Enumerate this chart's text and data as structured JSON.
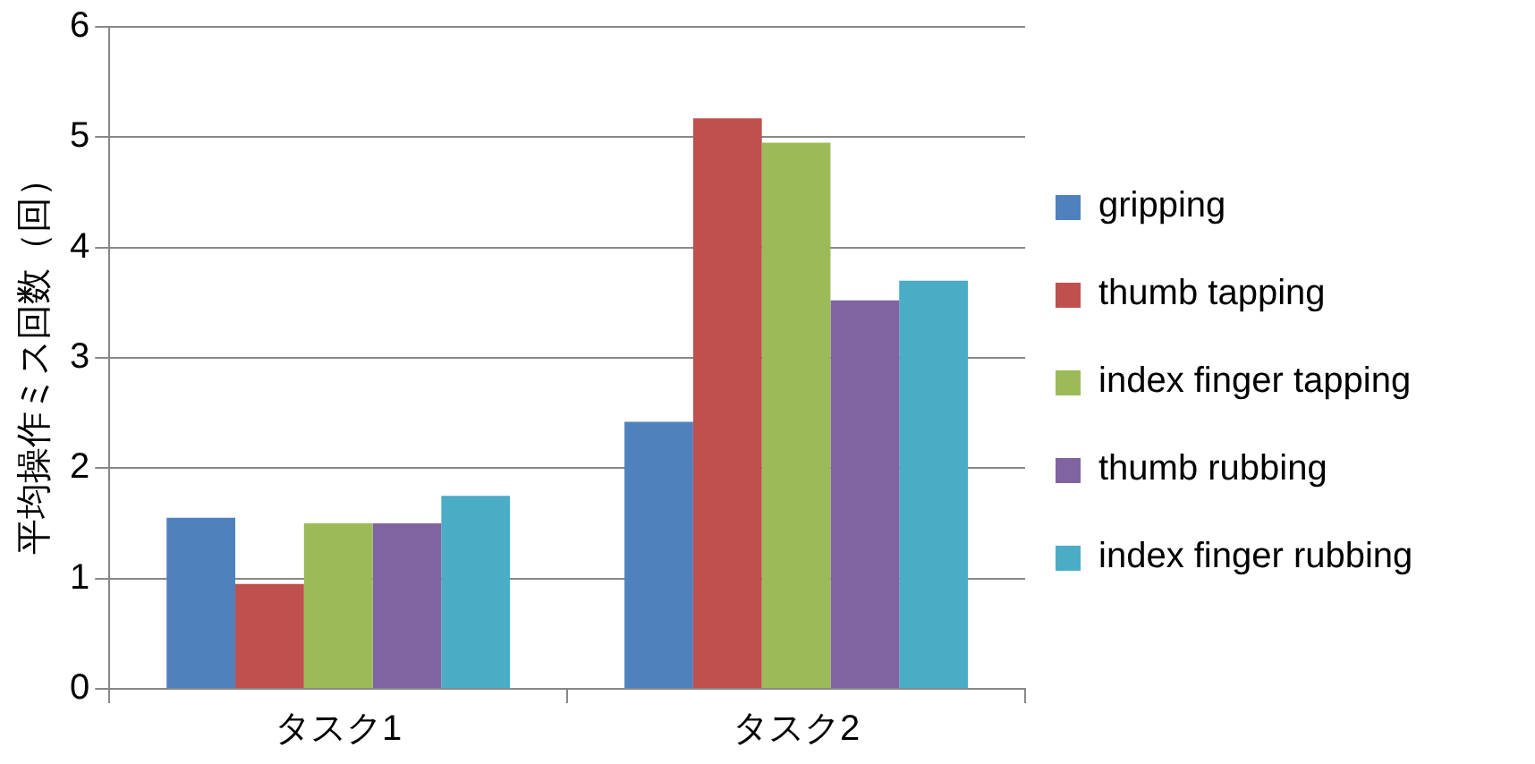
{
  "chart_data": {
    "type": "bar",
    "ylabel": "平均操作ミス回数（回）",
    "categories": [
      "タスク1",
      "タスク2"
    ],
    "series": [
      {
        "name": "gripping",
        "color": "#4f81bd",
        "values": [
          1.55,
          2.42
        ]
      },
      {
        "name": "thumb tapping",
        "color": "#c0504d",
        "values": [
          0.95,
          5.17
        ]
      },
      {
        "name": "index finger tapping",
        "color": "#9bbb59",
        "values": [
          1.5,
          4.95
        ]
      },
      {
        "name": "thumb rubbing",
        "color": "#8064a2",
        "values": [
          1.5,
          3.52
        ]
      },
      {
        "name": "index finger rubbing",
        "color": "#4bacc6",
        "values": [
          1.75,
          3.7
        ]
      }
    ],
    "ylim": [
      0,
      6
    ],
    "yticks": [
      0,
      1,
      2,
      3,
      4,
      5,
      6
    ],
    "grid": "y",
    "legend": "right"
  }
}
